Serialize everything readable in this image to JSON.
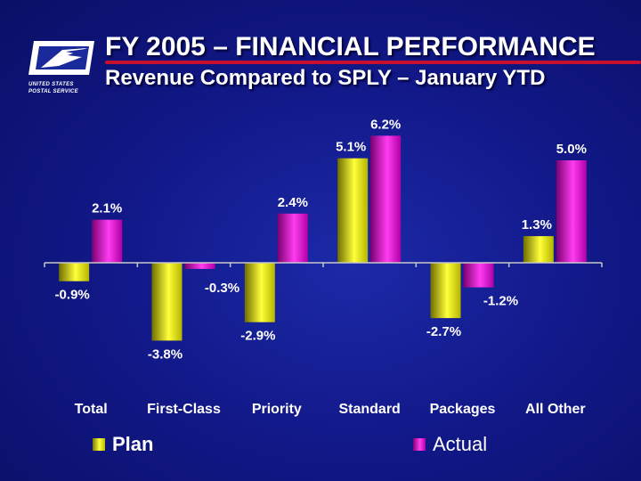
{
  "header": {
    "title": "FY 2005 – FINANCIAL PERFORMANCE",
    "subtitle": "Revenue Compared to SPLY – January YTD"
  },
  "logo": {
    "line1": "UNITED STATES",
    "line2": "POSTAL SERVICE"
  },
  "colors": {
    "plan": "#e8e800",
    "actual": "#e010d8",
    "accent_rule": "#c8102e"
  },
  "chart_data": {
    "type": "bar",
    "title": "Revenue Compared to SPLY – January YTD",
    "categories": [
      "Total",
      "First-Class",
      "Priority",
      "Standard",
      "Packages",
      "All Other"
    ],
    "series": [
      {
        "name": "Plan",
        "values": [
          -0.9,
          -3.8,
          -2.9,
          5.1,
          -2.7,
          1.3
        ]
      },
      {
        "name": "Actual",
        "values": [
          2.1,
          -0.3,
          2.4,
          6.2,
          -1.2,
          5.0
        ]
      }
    ],
    "labels": {
      "Plan": [
        "-0.9%",
        "-3.8%",
        "-2.9%",
        "5.1%",
        "-2.7%",
        "1.3%"
      ],
      "Actual": [
        "2.1%",
        "-0.3%",
        "2.4%",
        "6.2%",
        "-1.2%",
        "5.0%"
      ]
    },
    "unit": "%",
    "xlabel": "",
    "ylabel": "",
    "ylim": [
      -4,
      7
    ],
    "legend": "bottom",
    "grid": false
  }
}
